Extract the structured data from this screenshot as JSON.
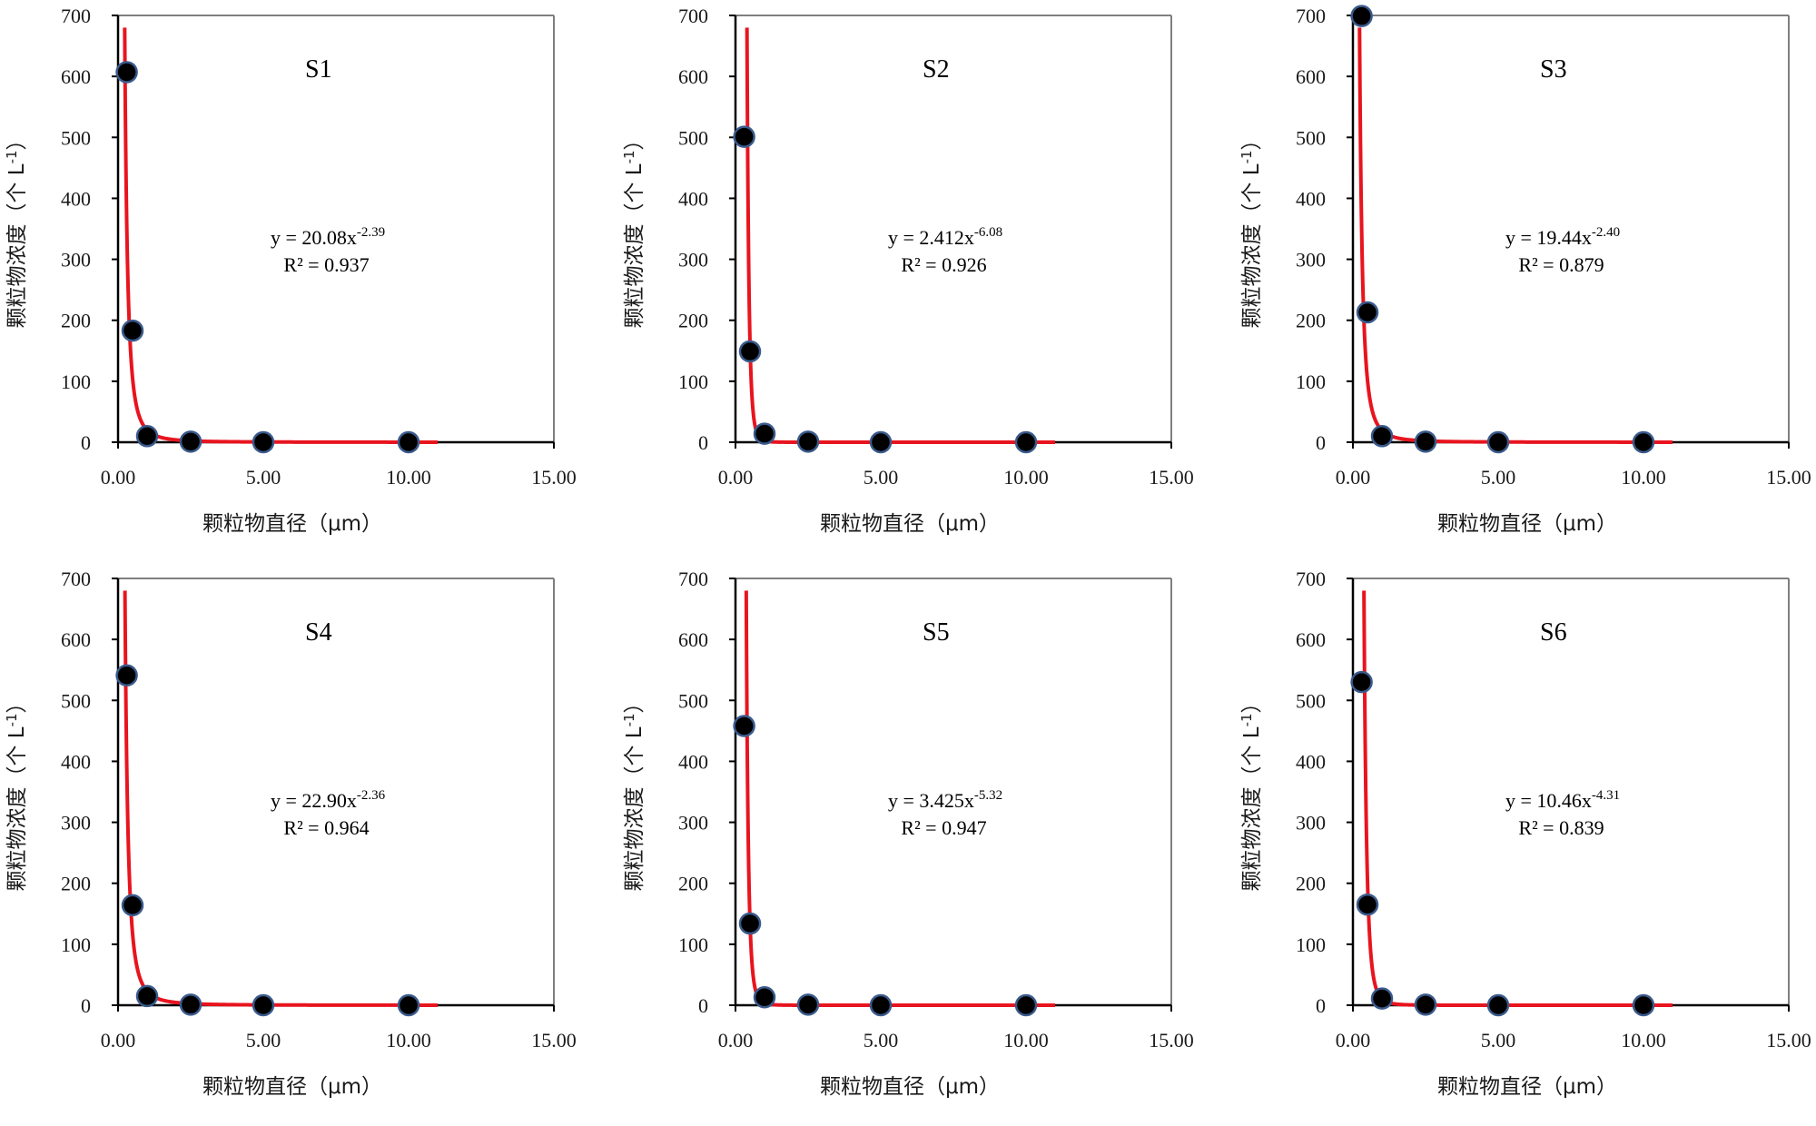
{
  "chart_data": [
    {
      "type": "scatter",
      "label": "S1",
      "xlabel": "颗粒物直径（μm）",
      "ylabel": "颗粒物浓度（个 L-1）",
      "xlim": [
        0,
        15
      ],
      "ylim": [
        0,
        700
      ],
      "xticks": [
        "0.00",
        "5.00",
        "10.00",
        "15.00"
      ],
      "yticks": [
        "0",
        "100",
        "200",
        "300",
        "400",
        "500",
        "600",
        "700"
      ],
      "points": [
        {
          "x": 0.3,
          "y": 607
        },
        {
          "x": 0.5,
          "y": 183
        },
        {
          "x": 1.0,
          "y": 10
        },
        {
          "x": 2.5,
          "y": 1
        },
        {
          "x": 5.0,
          "y": 0
        },
        {
          "x": 10.0,
          "y": 0
        }
      ],
      "fit": {
        "a": 20.08,
        "b": -2.39
      },
      "equation": {
        "base": "y = 20.08x",
        "exp": "-2.39",
        "r2": "R² = 0.937"
      }
    },
    {
      "type": "scatter",
      "label": "S2",
      "xlabel": "颗粒物直径（μm）",
      "ylabel": "颗粒物浓度（个 L-1）",
      "xlim": [
        0,
        15
      ],
      "ylim": [
        0,
        700
      ],
      "xticks": [
        "0.00",
        "5.00",
        "10.00",
        "15.00"
      ],
      "yticks": [
        "0",
        "100",
        "200",
        "300",
        "400",
        "500",
        "600",
        "700"
      ],
      "points": [
        {
          "x": 0.3,
          "y": 501
        },
        {
          "x": 0.5,
          "y": 149
        },
        {
          "x": 1.0,
          "y": 14
        },
        {
          "x": 2.5,
          "y": 1
        },
        {
          "x": 5.0,
          "y": 0
        },
        {
          "x": 10.0,
          "y": 0
        }
      ],
      "fit": {
        "a": 2.412,
        "b": -6.08
      },
      "equation": {
        "base": "y = 2.412x",
        "exp": "-6.08",
        "r2": "R² = 0.926"
      }
    },
    {
      "type": "scatter",
      "label": "S3",
      "xlabel": "颗粒物直径（μm）",
      "ylabel": "颗粒物浓度（个 L-1）",
      "xlim": [
        0,
        15
      ],
      "ylim": [
        0,
        700
      ],
      "xticks": [
        "0.00",
        "5.00",
        "10.00",
        "15.00"
      ],
      "yticks": [
        "0",
        "100",
        "200",
        "300",
        "400",
        "500",
        "600",
        "700"
      ],
      "points": [
        {
          "x": 0.3,
          "y": 699
        },
        {
          "x": 0.5,
          "y": 213
        },
        {
          "x": 1.0,
          "y": 10
        },
        {
          "x": 2.5,
          "y": 1
        },
        {
          "x": 5.0,
          "y": 0
        },
        {
          "x": 10.0,
          "y": 0
        }
      ],
      "fit": {
        "a": 19.44,
        "b": -2.4
      },
      "equation": {
        "base": "y = 19.44x",
        "exp": "-2.40",
        "r2": "R² = 0.879"
      }
    },
    {
      "type": "scatter",
      "label": "S4",
      "xlabel": "颗粒物直径（μm）",
      "ylabel": "颗粒物浓度（个 L-1）",
      "xlim": [
        0,
        15
      ],
      "ylim": [
        0,
        700
      ],
      "xticks": [
        "0.00",
        "5.00",
        "10.00",
        "15.00"
      ],
      "yticks": [
        "0",
        "100",
        "200",
        "300",
        "400",
        "500",
        "600",
        "700"
      ],
      "points": [
        {
          "x": 0.3,
          "y": 541
        },
        {
          "x": 0.5,
          "y": 164
        },
        {
          "x": 1.0,
          "y": 15
        },
        {
          "x": 2.5,
          "y": 1
        },
        {
          "x": 5.0,
          "y": 0
        },
        {
          "x": 10.0,
          "y": 0
        }
      ],
      "fit": {
        "a": 22.9,
        "b": -2.36
      },
      "equation": {
        "base": "y = 22.90x",
        "exp": "-2.36",
        "r2": "R² = 0.964"
      }
    },
    {
      "type": "scatter",
      "label": "S5",
      "xlabel": "颗粒物直径（μm）",
      "ylabel": "颗粒物浓度（个 L-1）",
      "xlim": [
        0,
        15
      ],
      "ylim": [
        0,
        700
      ],
      "xticks": [
        "0.00",
        "5.00",
        "10.00",
        "15.00"
      ],
      "yticks": [
        "0",
        "100",
        "200",
        "300",
        "400",
        "500",
        "600",
        "700"
      ],
      "points": [
        {
          "x": 0.3,
          "y": 458
        },
        {
          "x": 0.5,
          "y": 134
        },
        {
          "x": 1.0,
          "y": 13
        },
        {
          "x": 2.5,
          "y": 1
        },
        {
          "x": 5.0,
          "y": 0
        },
        {
          "x": 10.0,
          "y": 0
        }
      ],
      "fit": {
        "a": 3.425,
        "b": -5.32
      },
      "equation": {
        "base": "y = 3.425x",
        "exp": "-5.32",
        "r2": "R² = 0.947"
      }
    },
    {
      "type": "scatter",
      "label": "S6",
      "xlabel": "颗粒物直径（μm）",
      "ylabel": "颗粒物浓度（个 L-1）",
      "xlim": [
        0,
        15
      ],
      "ylim": [
        0,
        700
      ],
      "xticks": [
        "0.00",
        "5.00",
        "10.00",
        "15.00"
      ],
      "yticks": [
        "0",
        "100",
        "200",
        "300",
        "400",
        "500",
        "600",
        "700"
      ],
      "points": [
        {
          "x": 0.3,
          "y": 530
        },
        {
          "x": 0.5,
          "y": 165
        },
        {
          "x": 1.0,
          "y": 11
        },
        {
          "x": 2.5,
          "y": 1
        },
        {
          "x": 5.0,
          "y": 0
        },
        {
          "x": 10.0,
          "y": 0
        }
      ],
      "fit": {
        "a": 10.46,
        "b": -4.31
      },
      "equation": {
        "base": "y = 10.46x",
        "exp": "-4.31",
        "r2": "R² = 0.839"
      }
    }
  ],
  "colors": {
    "fit_line": "#e8141e",
    "marker_fill": "#000000",
    "marker_stroke": "#3a5a8c",
    "axis": "#000000",
    "frame": "#7f7f7f"
  }
}
